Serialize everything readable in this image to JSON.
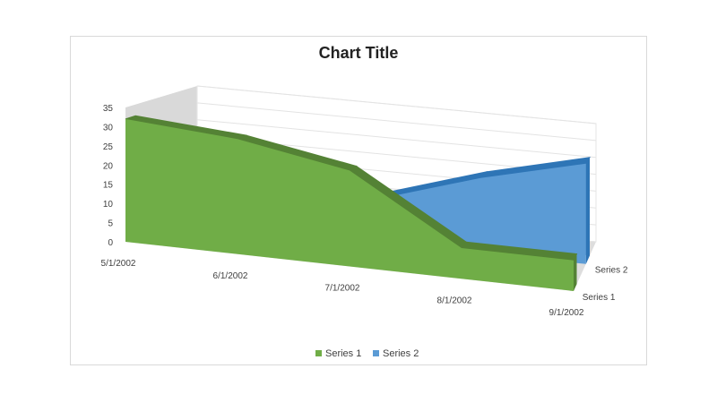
{
  "chart_data": {
    "type": "area",
    "subtype": "3d-area",
    "title": "Chart Title",
    "xlabel": "",
    "ylabel": "",
    "categories": [
      "5/1/2002",
      "6/1/2002",
      "7/1/2002",
      "8/1/2002",
      "9/1/2002"
    ],
    "series": [
      {
        "name": "Series 1",
        "values": [
          32,
          30,
          25,
          8,
          8
        ],
        "color": "#70ad47",
        "side_color": "#548235"
      },
      {
        "name": "Series 2",
        "values": [
          12,
          12,
          12,
          21,
          28
        ],
        "color": "#5b9bd5",
        "side_color": "#2e75b6"
      }
    ],
    "ylim": [
      0,
      35
    ],
    "yticks": [
      0,
      5,
      10,
      15,
      20,
      25,
      30,
      35
    ],
    "depth_labels": [
      "Series 1",
      "Series 2"
    ],
    "grid": true,
    "legend": "bottom",
    "floor_color": "#d9d9d9",
    "wall_color": "#d9d9d9"
  }
}
